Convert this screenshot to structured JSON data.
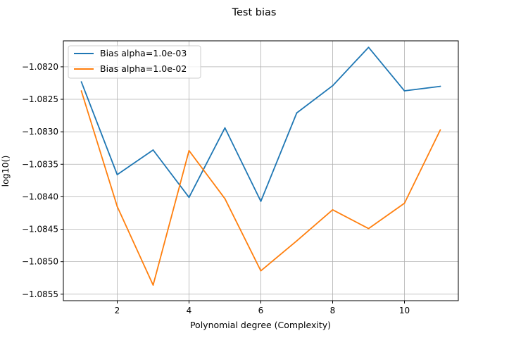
{
  "chart_data": {
    "type": "line",
    "title": "Test bias",
    "xlabel": "Polynomial degree (Complexity)",
    "ylabel": "log10()",
    "xlim": [
      0.5,
      11.5
    ],
    "ylim": [
      -1.0856,
      -1.0816
    ],
    "xticks": [
      2,
      4,
      6,
      8,
      10
    ],
    "yticks": [
      -1.0855,
      -1.085,
      -1.0845,
      -1.084,
      -1.0835,
      -1.083,
      -1.0825,
      -1.082
    ],
    "xtick_labels": [
      "2",
      "4",
      "6",
      "8",
      "10"
    ],
    "ytick_labels": [
      "−1.0855",
      "−1.0850",
      "−1.0845",
      "−1.0840",
      "−1.0835",
      "−1.0830",
      "−1.0825",
      "−1.0820"
    ],
    "grid": true,
    "legend_position": "top-left",
    "x": [
      1,
      2,
      3,
      4,
      5,
      6,
      7,
      8,
      9,
      10,
      11
    ],
    "series": [
      {
        "name": "Bias alpha=1.0e-03",
        "color": "#1f77b4",
        "values": [
          -1.08223,
          -1.08366,
          -1.08328,
          -1.08401,
          -1.08294,
          -1.08407,
          -1.08271,
          -1.08229,
          -1.0817,
          -1.08237,
          -1.0823
        ]
      },
      {
        "name": "Bias alpha=1.0e-02",
        "color": "#ff7f0e",
        "values": [
          -1.08237,
          -1.08415,
          -1.08536,
          -1.08329,
          -1.08403,
          -1.08514,
          -1.08468,
          -1.0842,
          -1.08449,
          -1.0841,
          -1.08297
        ]
      }
    ]
  }
}
